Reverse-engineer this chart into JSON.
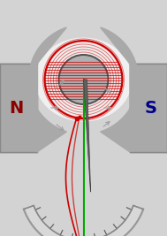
{
  "bg_color": "#d3d3d3",
  "white_region_color": "#f0f0f0",
  "magnet_color": "#a9a9a9",
  "magnet_N_color": "#8b0000",
  "magnet_S_color": "#00008b",
  "coil_color": "#cc0000",
  "coil_green_color": "#00aa00",
  "needle_color": "#808080",
  "scale_color": "#c0c0c0",
  "arrow_color": "#a0a0a0",
  "fig_width": 1.89,
  "fig_height": 2.67,
  "fig_dpi": 100
}
